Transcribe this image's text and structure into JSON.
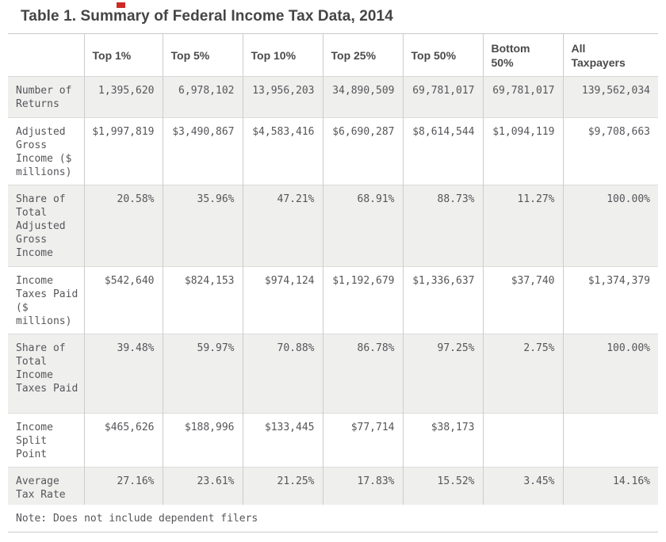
{
  "title": "Table 1. Summary of Federal Income Tax Data, 2014",
  "colors": {
    "row_alt_background": "#efefee",
    "border_gray": "#cccccc",
    "title_text": "#454545",
    "cell_text": "#56565a",
    "artifact_red": "#cc2b25"
  },
  "chart_data": {
    "type": "table",
    "title": "Table 1. Summary of Federal Income Tax Data, 2014",
    "columns": [
      "Top 1%",
      "Top 5%",
      "Top 10%",
      "Top 25%",
      "Top 50%",
      "Bottom 50%",
      "All Taxpayers"
    ],
    "rows": [
      {
        "label": "Number of Returns",
        "values": [
          "1,395,620",
          "6,978,102",
          "13,956,203",
          "34,890,509",
          "69,781,017",
          "69,781,017",
          "139,562,034"
        ]
      },
      {
        "label": "Adjusted Gross Income ($ millions)",
        "values": [
          "$1,997,819",
          "$3,490,867",
          "$4,583,416",
          "$6,690,287",
          "$8,614,544",
          "$1,094,119",
          "$9,708,663"
        ]
      },
      {
        "label": "Share of Total Adjusted Gross Income",
        "values": [
          "20.58%",
          "35.96%",
          "47.21%",
          "68.91%",
          "88.73%",
          "11.27%",
          "100.00%"
        ]
      },
      {
        "label": "Income Taxes Paid ($ millions)",
        "values": [
          "$542,640",
          "$824,153",
          "$974,124",
          "$1,192,679",
          "$1,336,637",
          "$37,740",
          "$1,374,379"
        ]
      },
      {
        "label": "Share of Total Income Taxes Paid",
        "values": [
          "39.48%",
          "59.97%",
          "70.88%",
          "86.78%",
          "97.25%",
          "2.75%",
          "100.00%"
        ]
      },
      {
        "label": "Income Split Point",
        "values": [
          "$465,626",
          "$188,996",
          "$133,445",
          "$77,714",
          "$38,173",
          "",
          ""
        ]
      },
      {
        "label": "Average Tax Rate",
        "values": [
          "27.16%",
          "23.61%",
          "21.25%",
          "17.83%",
          "15.52%",
          "3.45%",
          "14.16%"
        ]
      }
    ],
    "note": "Note: Does not include dependent filers"
  }
}
